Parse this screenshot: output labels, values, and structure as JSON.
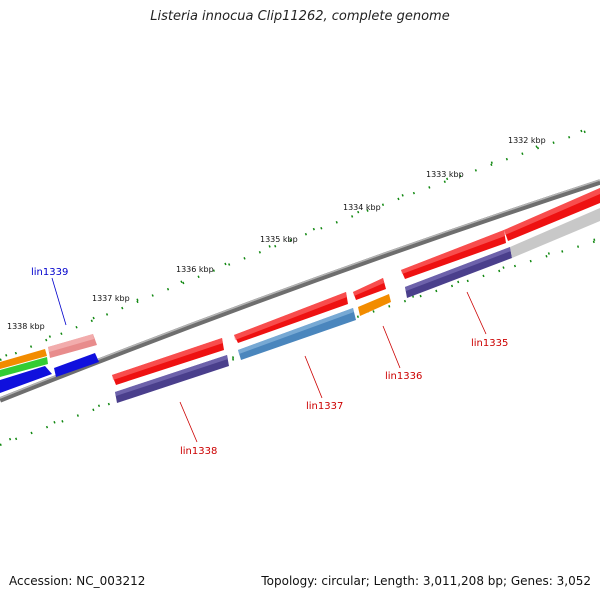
{
  "title": "Listeria innocua Clip11262, complete genome",
  "footer": {
    "accession": "Accession: NC_003212",
    "topology": "Topology: circular; Length: 3,011,208 bp; Genes: 3,052"
  },
  "scale_labels": [
    "1332 kbp",
    "1333 kbp",
    "1334 kbp",
    "1335 kbp",
    "1336 kbp",
    "1337 kbp",
    "1338 kbp"
  ],
  "gene_labels": [
    {
      "name": "lin1335",
      "color": "#cc0000"
    },
    {
      "name": "lin1336",
      "color": "#cc0000"
    },
    {
      "name": "lin1337",
      "color": "#cc0000"
    },
    {
      "name": "lin1338",
      "color": "#cc0000"
    },
    {
      "name": "lin1339",
      "color": "#0000cc"
    }
  ],
  "colors": {
    "backbone": "#808080",
    "tick": "#118811",
    "cds_red": "#ee1111",
    "cds_purple": "#4a3f8c",
    "cds_steelblue": "#4a86bd",
    "cds_orange": "#f28c00",
    "cds_gray": "#c8c8c8",
    "cds_blue": "#1010dd",
    "cds_green": "#33cc33",
    "cds_pink": "#e88c8c"
  }
}
